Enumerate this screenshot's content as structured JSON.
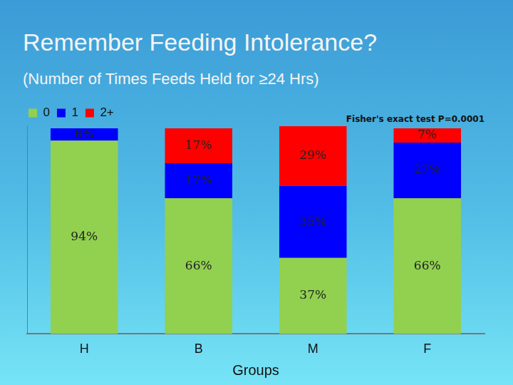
{
  "chart_data": {
    "type": "bar",
    "title": "Remember Feeding Intolerance?",
    "subtitle": "(Number of Times Feeds Held for ≥24 Hrs)",
    "annotation": "Fisher's exact test P=0.0001",
    "x_label": "Groups",
    "categories": [
      "H",
      "B",
      "M",
      "F"
    ],
    "series": [
      {
        "name": "0",
        "color": "#92d050",
        "values": [
          94,
          66,
          37,
          66
        ],
        "value_labels": [
          "94%",
          "66%",
          "37%",
          "66%"
        ]
      },
      {
        "name": "1",
        "color": "#0000ff",
        "values": [
          6,
          17,
          35,
          27
        ],
        "value_labels": [
          "6%",
          "17%",
          "35%",
          "27%"
        ]
      },
      {
        "name": "2+",
        "color": "#ff0000",
        "values": [
          0,
          17,
          29,
          7
        ],
        "value_labels": [
          null,
          "17%",
          "29%",
          "7%"
        ]
      }
    ],
    "ylim": [
      0,
      101
    ],
    "stacked": true,
    "data_labels": true,
    "legend": "top-left",
    "tick_labels": "x",
    "grid": false
  }
}
